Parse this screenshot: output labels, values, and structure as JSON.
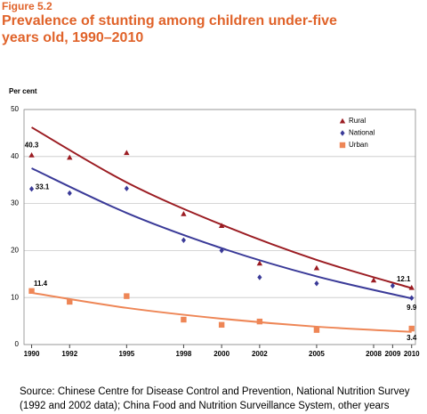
{
  "figure_label": "Figure 5.2",
  "title": "Prevalence of stunting among children under-five years old, 1990–2010",
  "source": "Source: Chinese Centre for Disease Control and Prevention, National Nutrition Survey (1992 and 2002 data); China Food and Nutrition Surveillance System, other years",
  "chart_data": {
    "type": "scatter",
    "y_label": "Per cent",
    "xlim": [
      1989.6,
      2010.2
    ],
    "xticks": [
      1990,
      1992,
      1995,
      1998,
      2000,
      2002,
      2005,
      2008,
      2009,
      2010
    ],
    "ylim": [
      0,
      50
    ],
    "yticks": [
      0,
      10,
      20,
      30,
      40,
      50
    ],
    "grid": true,
    "legend": "top-right",
    "series": [
      {
        "name": "Rural",
        "color": "#9b1c22",
        "marker": "triangle",
        "x": [
          1990,
          1992,
          1995,
          1998,
          2000,
          2002,
          2005,
          2008,
          2010
        ],
        "values": [
          40.3,
          39.8,
          40.8,
          27.8,
          25.3,
          17.3,
          16.3,
          13.7,
          12.1
        ],
        "trend": {
          "x": [
            1990,
            1995,
            2000,
            2005,
            2010
          ],
          "values": [
            46.2,
            34.5,
            25.5,
            18,
            12
          ]
        }
      },
      {
        "name": "National",
        "color": "#3a3a98",
        "marker": "diamond",
        "x": [
          1990,
          1992,
          1995,
          1998,
          2000,
          2002,
          2005,
          2009,
          2010
        ],
        "values": [
          33.1,
          32.2,
          33.2,
          22.2,
          20,
          14.3,
          13,
          12.5,
          9.9
        ],
        "trend": {
          "x": [
            1990,
            1995,
            2000,
            2005,
            2010
          ],
          "values": [
            37.5,
            28,
            20.5,
            14.5,
            9.8
          ]
        }
      },
      {
        "name": "Urban",
        "color": "#ee8656",
        "marker": "square",
        "x": [
          1990,
          1992,
          1995,
          1998,
          2000,
          2002,
          2005,
          2010
        ],
        "values": [
          11.4,
          9.1,
          10.3,
          5.3,
          4.2,
          4.9,
          3.1,
          3.4
        ],
        "trend": {
          "x": [
            1990,
            1995,
            2000,
            2005,
            2010
          ],
          "values": [
            11,
            7.8,
            5.5,
            3.8,
            2.7
          ]
        }
      }
    ]
  }
}
